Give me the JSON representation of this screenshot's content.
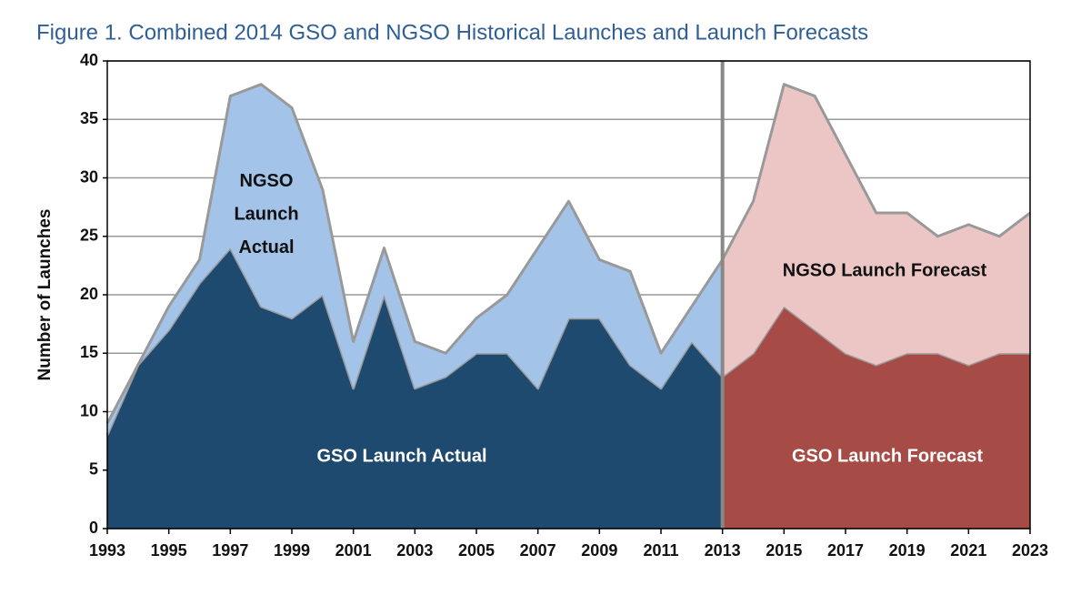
{
  "chart_data": {
    "type": "stacked-area",
    "title": "Figure 1. Combined 2014 GSO and NGSO Historical Launches and Launch Forecasts",
    "y_label": "Number of Launches",
    "x": [
      1993,
      1994,
      1995,
      1996,
      1997,
      1998,
      1999,
      2000,
      2001,
      2002,
      2003,
      2004,
      2005,
      2006,
      2007,
      2008,
      2009,
      2010,
      2011,
      2012,
      2013,
      2014,
      2015,
      2016,
      2017,
      2018,
      2019,
      2020,
      2021,
      2022,
      2023
    ],
    "series": [
      {
        "name": "GSO Launch Actual",
        "color": "#1f4a70",
        "stack": "actual",
        "values": [
          8,
          14,
          17,
          21,
          24,
          19,
          18,
          20,
          12,
          20,
          12,
          13,
          15,
          15,
          12,
          18,
          18,
          14,
          12,
          16,
          13,
          null,
          null,
          null,
          null,
          null,
          null,
          null,
          null,
          null,
          null
        ]
      },
      {
        "name": "NGSO Launch Actual",
        "color": "#a3c3e8",
        "stack": "actual",
        "values": [
          1,
          0,
          2,
          2,
          13,
          19,
          18,
          9,
          4,
          4,
          4,
          2,
          3,
          5,
          12,
          10,
          5,
          8,
          3,
          3,
          10,
          null,
          null,
          null,
          null,
          null,
          null,
          null,
          null,
          null,
          null
        ]
      },
      {
        "name": "GSO Launch Forecast",
        "color": "#a64b45",
        "stack": "forecast",
        "values": [
          null,
          null,
          null,
          null,
          null,
          null,
          null,
          null,
          null,
          null,
          null,
          null,
          null,
          null,
          null,
          null,
          null,
          null,
          null,
          null,
          13,
          15,
          19,
          17,
          15,
          14,
          15,
          15,
          14,
          15,
          15
        ]
      },
      {
        "name": "NGSO Launch Forecast",
        "color": "#ebc6c5",
        "stack": "forecast",
        "values": [
          null,
          null,
          null,
          null,
          null,
          null,
          null,
          null,
          null,
          null,
          null,
          null,
          null,
          null,
          null,
          null,
          null,
          null,
          null,
          null,
          10,
          13,
          19,
          20,
          17,
          13,
          12,
          10,
          12,
          10,
          12
        ]
      }
    ],
    "xlim": [
      1993,
      2023
    ],
    "xticks": [
      1993,
      1995,
      1997,
      1999,
      2001,
      2003,
      2005,
      2007,
      2009,
      2011,
      2013,
      2015,
      2017,
      2019,
      2021,
      2023
    ],
    "ylim": [
      0,
      40
    ],
    "yticks": [
      0,
      5,
      10,
      15,
      20,
      25,
      30,
      35,
      40
    ],
    "grid": true
  }
}
